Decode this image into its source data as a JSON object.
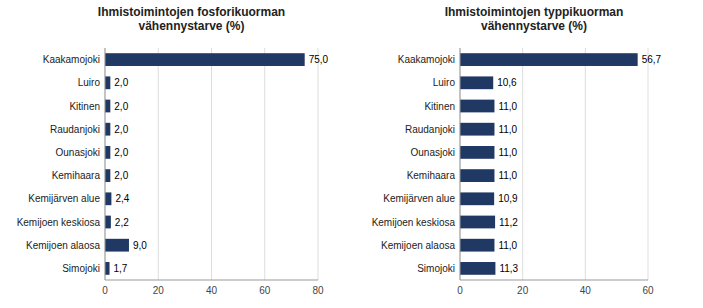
{
  "chart_data": [
    {
      "type": "bar",
      "orientation": "horizontal",
      "title": "Ihmistoimintojen fosforikuorman\nvähennystarve (%)",
      "categories": [
        "Kaakamojoki",
        "Luiro",
        "Kitinen",
        "Raudanjoki",
        "Ounasjoki",
        "Kemihaara",
        "Kemijärven alue",
        "Kemijoen keskiosa",
        "Kemijoen alaosa",
        "Simojoki"
      ],
      "values": [
        75.0,
        2.0,
        2.0,
        2.0,
        2.0,
        2.0,
        2.4,
        2.2,
        9.0,
        1.7
      ],
      "value_labels": [
        "75,0",
        "2,0",
        "2,0",
        "2,0",
        "2,0",
        "2,0",
        "2,4",
        "2,2",
        "9,0",
        "1,7"
      ],
      "color": "#1F3864",
      "xlim": [
        0,
        80
      ],
      "xticks": [
        0,
        20,
        40,
        60,
        80
      ],
      "grid": true,
      "data_labels": true
    },
    {
      "type": "bar",
      "orientation": "horizontal",
      "title": "Ihmistoimintojen typpikuorman\nvähennystarve (%)",
      "categories": [
        "Kaakamojoki",
        "Luiro",
        "Kitinen",
        "Raudanjoki",
        "Ounasjoki",
        "Kemihaara",
        "Kemijärven alue",
        "Kemijoen keskiosa",
        "Kemijoen alaosa",
        "Simojoki"
      ],
      "values": [
        56.7,
        10.6,
        11.0,
        11.0,
        11.0,
        11.0,
        10.9,
        11.2,
        11.0,
        11.3
      ],
      "value_labels": [
        "56,7",
        "10,6",
        "11,0",
        "11,0",
        "11,0",
        "11,0",
        "10,9",
        "11,2",
        "11,0",
        "11,3"
      ],
      "color": "#1F3864",
      "xlim": [
        0,
        60
      ],
      "xticks": [
        0,
        20,
        40,
        60
      ],
      "grid": true,
      "data_labels": true
    }
  ]
}
